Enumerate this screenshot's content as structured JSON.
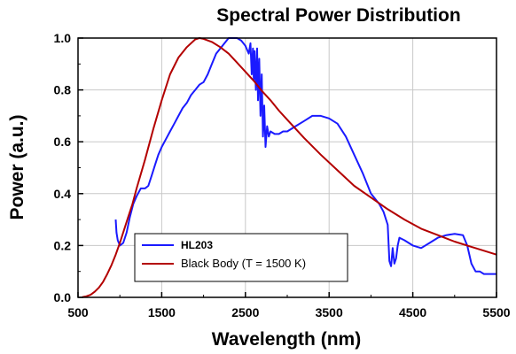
{
  "chart_data": {
    "type": "line",
    "title": "Spectral Power Distribution",
    "xlabel": "Wavelength (nm)",
    "ylabel": "Power (a.u.)",
    "xlim": [
      500,
      5500
    ],
    "ylim": [
      0,
      1.0
    ],
    "xticks": [
      500,
      1500,
      2500,
      3500,
      4500,
      5500
    ],
    "xtick_labels": [
      "500",
      "1500",
      "2500",
      "3500",
      "4500",
      "5500"
    ],
    "yticks": [
      0,
      0.2,
      0.4,
      0.6,
      0.8,
      1.0
    ],
    "ytick_labels": [
      "0.0",
      "0.2",
      "0.4",
      "0.6",
      "0.8",
      "1.0"
    ],
    "grid": true,
    "legend_position": "bottom-left",
    "colors": {
      "hl203": "#1a1aff",
      "blackbody": "#b30000"
    },
    "series": [
      {
        "name": "HL203",
        "x": [
          950,
          960,
          975,
          1000,
          1040,
          1080,
          1120,
          1160,
          1200,
          1250,
          1300,
          1340,
          1380,
          1420,
          1460,
          1500,
          1550,
          1600,
          1650,
          1700,
          1750,
          1800,
          1850,
          1900,
          1950,
          2000,
          2050,
          2100,
          2150,
          2200,
          2250,
          2300,
          2350,
          2400,
          2450,
          2500,
          2540,
          2560,
          2575,
          2590,
          2600,
          2610,
          2625,
          2640,
          2650,
          2665,
          2680,
          2695,
          2710,
          2725,
          2740,
          2760,
          2780,
          2800,
          2850,
          2900,
          2950,
          3000,
          3100,
          3200,
          3300,
          3400,
          3500,
          3600,
          3700,
          3800,
          3900,
          4000,
          4100,
          4150,
          4200,
          4220,
          4240,
          4260,
          4280,
          4300,
          4320,
          4340,
          4400,
          4500,
          4600,
          4700,
          4800,
          4900,
          5000,
          5100,
          5150,
          5200,
          5250,
          5300,
          5350,
          5400,
          5450,
          5500
        ],
        "y": [
          0.3,
          0.25,
          0.22,
          0.2,
          0.21,
          0.25,
          0.31,
          0.36,
          0.39,
          0.42,
          0.42,
          0.43,
          0.47,
          0.51,
          0.55,
          0.58,
          0.61,
          0.64,
          0.67,
          0.7,
          0.73,
          0.75,
          0.78,
          0.8,
          0.82,
          0.83,
          0.86,
          0.9,
          0.94,
          0.96,
          0.98,
          1.0,
          1.0,
          1.0,
          0.99,
          0.97,
          0.94,
          0.98,
          0.86,
          0.96,
          0.84,
          0.95,
          0.8,
          0.96,
          0.76,
          0.92,
          0.7,
          0.86,
          0.62,
          0.74,
          0.58,
          0.66,
          0.62,
          0.64,
          0.63,
          0.63,
          0.64,
          0.64,
          0.66,
          0.68,
          0.7,
          0.7,
          0.69,
          0.67,
          0.62,
          0.55,
          0.48,
          0.4,
          0.36,
          0.33,
          0.28,
          0.14,
          0.12,
          0.19,
          0.13,
          0.15,
          0.2,
          0.23,
          0.22,
          0.2,
          0.19,
          0.21,
          0.23,
          0.24,
          0.245,
          0.24,
          0.2,
          0.13,
          0.1,
          0.1,
          0.09,
          0.09,
          0.09,
          0.09
        ]
      },
      {
        "name": "Black Body (T = 1500 K)",
        "x": [
          550,
          600,
          650,
          700,
          750,
          800,
          850,
          900,
          950,
          1000,
          1050,
          1100,
          1150,
          1200,
          1300,
          1400,
          1500,
          1600,
          1700,
          1800,
          1900,
          1950,
          2000,
          2100,
          2200,
          2300,
          2400,
          2500,
          2600,
          2700,
          2800,
          2900,
          3000,
          3200,
          3400,
          3600,
          3800,
          4000,
          4200,
          4400,
          4600,
          4800,
          5000,
          5200,
          5500
        ],
        "y": [
          0.001,
          0.004,
          0.01,
          0.022,
          0.038,
          0.06,
          0.09,
          0.125,
          0.165,
          0.21,
          0.26,
          0.31,
          0.36,
          0.42,
          0.53,
          0.65,
          0.76,
          0.86,
          0.925,
          0.965,
          0.995,
          1.0,
          0.997,
          0.985,
          0.965,
          0.94,
          0.905,
          0.87,
          0.835,
          0.795,
          0.76,
          0.72,
          0.685,
          0.615,
          0.55,
          0.49,
          0.43,
          0.385,
          0.34,
          0.3,
          0.265,
          0.24,
          0.215,
          0.195,
          0.165
        ]
      }
    ]
  }
}
